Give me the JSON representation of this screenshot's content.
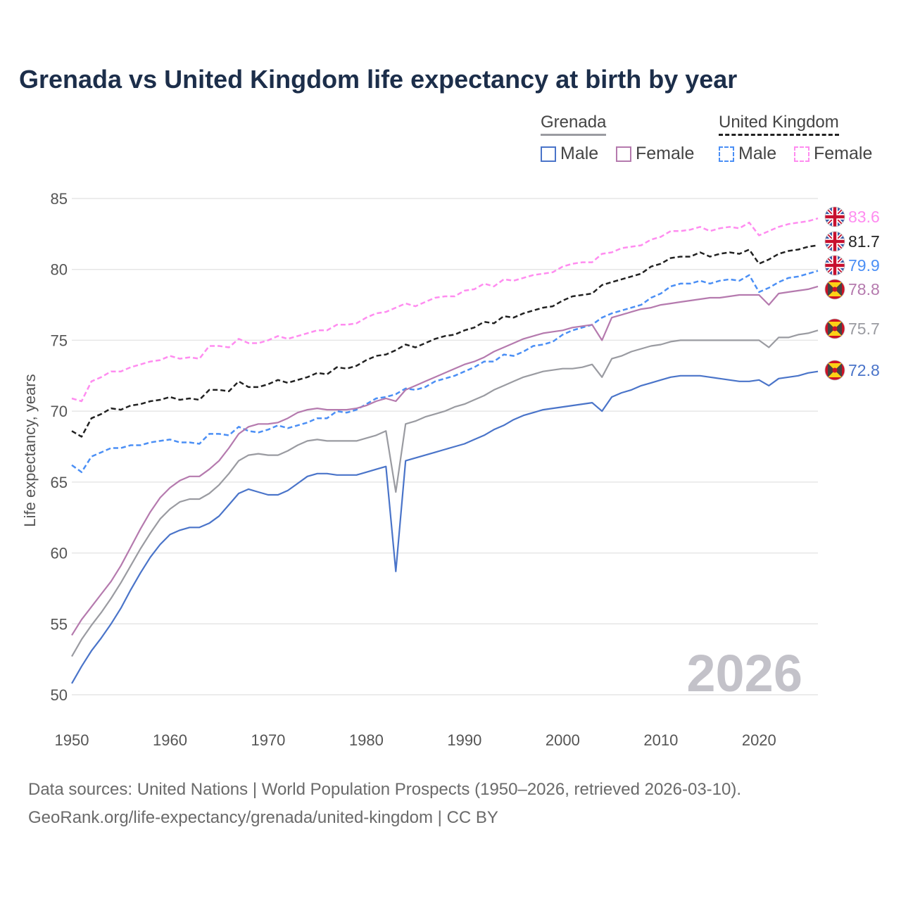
{
  "chart_data": {
    "type": "line",
    "title": "Grenada vs United Kingdom life expectancy at birth by year",
    "xlabel": "",
    "ylabel": "Life expectancy, years",
    "xlim": [
      1950,
      2026
    ],
    "ylim": [
      50,
      85
    ],
    "yticks": [
      "85",
      "80",
      "75",
      "70",
      "65",
      "60",
      "55",
      "50"
    ],
    "xticks": [
      "1950",
      "1960",
      "1970",
      "1980",
      "1990",
      "2000",
      "2010",
      "2020"
    ],
    "grid": true,
    "watermark_year": "2026",
    "x_start": 1950,
    "legend": {
      "groups": [
        {
          "name": "Grenada",
          "items": [
            "Male",
            "Female"
          ]
        },
        {
          "name": "United Kingdom",
          "items": [
            "Male",
            "Female"
          ]
        }
      ],
      "placement": "top-right"
    },
    "series": [
      {
        "name": "United Kingdom Female",
        "color": "#ff8cf0",
        "dashed": true,
        "flag": "uk",
        "end_label": "83.6",
        "values": [
          70.9,
          70.7,
          72.1,
          72.4,
          72.8,
          72.8,
          73.1,
          73.3,
          73.5,
          73.6,
          73.9,
          73.7,
          73.8,
          73.7,
          74.6,
          74.6,
          74.5,
          75.1,
          74.8,
          74.8,
          75.0,
          75.3,
          75.1,
          75.3,
          75.5,
          75.7,
          75.7,
          76.1,
          76.1,
          76.2,
          76.6,
          76.9,
          77.0,
          77.3,
          77.6,
          77.4,
          77.7,
          78.0,
          78.1,
          78.1,
          78.5,
          78.6,
          79.0,
          78.8,
          79.3,
          79.2,
          79.4,
          79.6,
          79.7,
          79.8,
          80.2,
          80.4,
          80.5,
          80.5,
          81.1,
          81.2,
          81.5,
          81.6,
          81.7,
          82.1,
          82.3,
          82.7,
          82.7,
          82.8,
          83.0,
          82.7,
          82.9,
          83.0,
          82.9,
          83.3,
          82.4,
          82.7,
          83.0,
          83.2,
          83.3,
          83.4,
          83.6
        ]
      },
      {
        "name": "United Kingdom",
        "color": "#222222",
        "dashed": true,
        "flag": "uk",
        "end_label": "81.7",
        "values": [
          68.6,
          68.2,
          69.5,
          69.8,
          70.2,
          70.1,
          70.4,
          70.5,
          70.7,
          70.8,
          71.0,
          70.8,
          70.9,
          70.8,
          71.5,
          71.5,
          71.4,
          72.1,
          71.7,
          71.7,
          71.9,
          72.2,
          72.0,
          72.2,
          72.4,
          72.7,
          72.6,
          73.1,
          73.0,
          73.2,
          73.6,
          73.9,
          74.0,
          74.3,
          74.7,
          74.5,
          74.8,
          75.1,
          75.3,
          75.4,
          75.7,
          75.9,
          76.3,
          76.2,
          76.7,
          76.6,
          76.9,
          77.1,
          77.3,
          77.4,
          77.8,
          78.1,
          78.2,
          78.3,
          78.9,
          79.1,
          79.3,
          79.5,
          79.7,
          80.2,
          80.4,
          80.8,
          80.9,
          80.9,
          81.2,
          80.9,
          81.1,
          81.2,
          81.1,
          81.4,
          80.4,
          80.7,
          81.1,
          81.3,
          81.4,
          81.6,
          81.7
        ]
      },
      {
        "name": "United Kingdom Male",
        "color": "#4b8ff5",
        "dashed": true,
        "flag": "uk",
        "end_label": "79.9",
        "values": [
          66.2,
          65.7,
          66.8,
          67.1,
          67.4,
          67.4,
          67.6,
          67.6,
          67.8,
          67.9,
          68.0,
          67.8,
          67.8,
          67.7,
          68.4,
          68.4,
          68.3,
          68.9,
          68.6,
          68.5,
          68.7,
          69.0,
          68.8,
          69.0,
          69.2,
          69.5,
          69.5,
          70.0,
          69.9,
          70.1,
          70.5,
          70.9,
          71.0,
          71.2,
          71.6,
          71.5,
          71.7,
          72.1,
          72.3,
          72.5,
          72.8,
          73.1,
          73.5,
          73.5,
          74.0,
          73.9,
          74.2,
          74.6,
          74.7,
          74.9,
          75.4,
          75.7,
          75.9,
          76.1,
          76.6,
          76.9,
          77.1,
          77.3,
          77.5,
          78.0,
          78.3,
          78.8,
          79.0,
          79.0,
          79.2,
          79.0,
          79.2,
          79.3,
          79.2,
          79.6,
          78.4,
          78.7,
          79.1,
          79.4,
          79.5,
          79.7,
          79.9
        ]
      },
      {
        "name": "Grenada Female",
        "color": "#b57aae",
        "dashed": false,
        "flag": "grenada",
        "end_label": "78.8",
        "values": [
          54.2,
          55.3,
          56.2,
          57.1,
          58.0,
          59.1,
          60.4,
          61.7,
          62.9,
          63.9,
          64.6,
          65.1,
          65.4,
          65.4,
          65.9,
          66.5,
          67.4,
          68.4,
          68.9,
          69.1,
          69.1,
          69.2,
          69.5,
          69.9,
          70.1,
          70.2,
          70.1,
          70.1,
          70.1,
          70.2,
          70.4,
          70.7,
          70.9,
          70.7,
          71.5,
          71.8,
          72.1,
          72.4,
          72.7,
          73.0,
          73.3,
          73.5,
          73.8,
          74.2,
          74.5,
          74.8,
          75.1,
          75.3,
          75.5,
          75.6,
          75.7,
          75.9,
          76.0,
          76.1,
          75.0,
          76.6,
          76.8,
          77.0,
          77.2,
          77.3,
          77.5,
          77.6,
          77.7,
          77.8,
          77.9,
          78.0,
          78.0,
          78.1,
          78.2,
          78.2,
          78.2,
          77.5,
          78.3,
          78.4,
          78.5,
          78.6,
          78.8
        ]
      },
      {
        "name": "Grenada",
        "color": "#9a9ba1",
        "dashed": false,
        "flag": "grenada",
        "end_label": "75.7",
        "values": [
          52.7,
          53.9,
          54.9,
          55.8,
          56.8,
          57.9,
          59.1,
          60.3,
          61.4,
          62.4,
          63.1,
          63.6,
          63.8,
          63.8,
          64.2,
          64.8,
          65.6,
          66.5,
          66.9,
          67.0,
          66.9,
          66.9,
          67.2,
          67.6,
          67.9,
          68.0,
          67.9,
          67.9,
          67.9,
          67.9,
          68.1,
          68.3,
          68.6,
          64.3,
          69.1,
          69.3,
          69.6,
          69.8,
          70.0,
          70.3,
          70.5,
          70.8,
          71.1,
          71.5,
          71.8,
          72.1,
          72.4,
          72.6,
          72.8,
          72.9,
          73.0,
          73.0,
          73.1,
          73.3,
          72.4,
          73.7,
          73.9,
          74.2,
          74.4,
          74.6,
          74.7,
          74.9,
          75.0,
          75.0,
          75.0,
          75.0,
          75.0,
          75.0,
          75.0,
          75.0,
          75.0,
          74.5,
          75.2,
          75.2,
          75.4,
          75.5,
          75.7
        ]
      },
      {
        "name": "Grenada Male",
        "color": "#4a74c9",
        "dashed": false,
        "flag": "grenada",
        "end_label": "72.8",
        "values": [
          50.8,
          52.0,
          53.1,
          54.0,
          55.0,
          56.1,
          57.4,
          58.6,
          59.7,
          60.6,
          61.3,
          61.6,
          61.8,
          61.8,
          62.1,
          62.6,
          63.4,
          64.2,
          64.5,
          64.3,
          64.1,
          64.1,
          64.4,
          64.9,
          65.4,
          65.6,
          65.6,
          65.5,
          65.5,
          65.5,
          65.7,
          65.9,
          66.1,
          58.7,
          66.5,
          66.7,
          66.9,
          67.1,
          67.3,
          67.5,
          67.7,
          68.0,
          68.3,
          68.7,
          69.0,
          69.4,
          69.7,
          69.9,
          70.1,
          70.2,
          70.3,
          70.4,
          70.5,
          70.6,
          70.0,
          71.0,
          71.3,
          71.5,
          71.8,
          72.0,
          72.2,
          72.4,
          72.5,
          72.5,
          72.5,
          72.4,
          72.3,
          72.2,
          72.1,
          72.1,
          72.2,
          71.8,
          72.3,
          72.4,
          72.5,
          72.7,
          72.8
        ]
      }
    ]
  },
  "legend": {
    "grenada": "Grenada",
    "uk": "United Kingdom",
    "male": "Male",
    "female": "Female"
  },
  "footer": {
    "line1": "Data sources: United Nations | World Population Prospects (1950–2026, retrieved 2026-03-10).",
    "line2": "GeoRank.org/life-expectancy/grenada/united-kingdom | CC BY"
  }
}
